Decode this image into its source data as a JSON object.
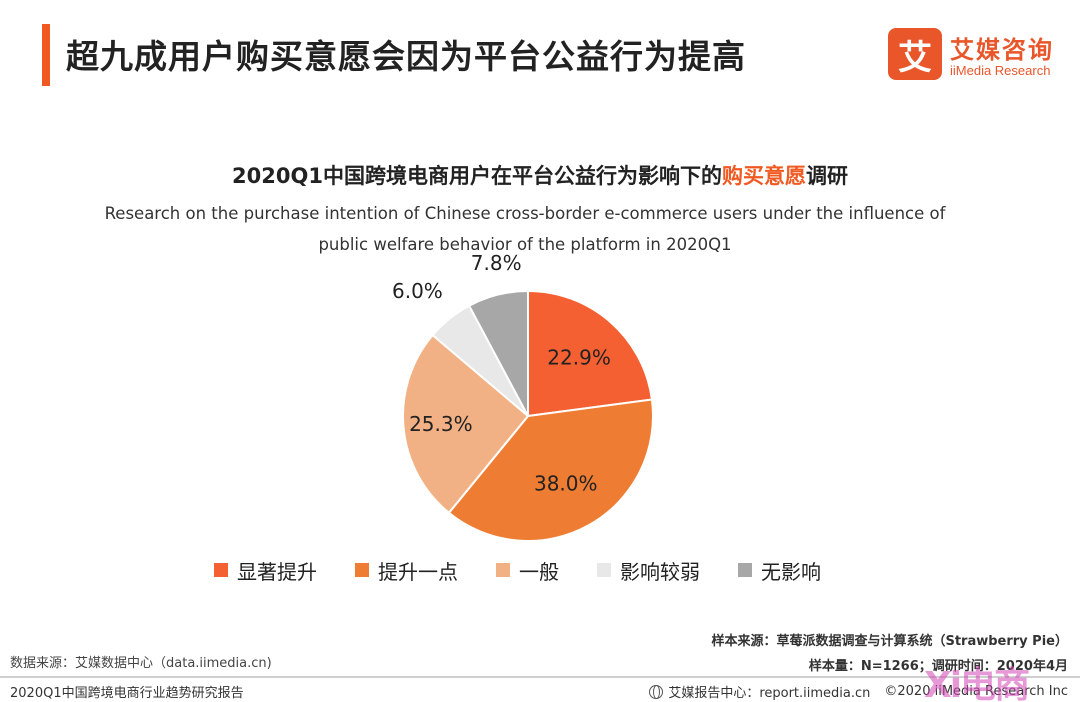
{
  "header": {
    "title": "超九成用户购买意愿会因为平台公益行为提高",
    "accent_color": "#f05a22"
  },
  "logo": {
    "mark": "艾",
    "name_cn": "艾媒咨询",
    "name_en": "iiMedia Research"
  },
  "chart_data": {
    "type": "pie",
    "title_parts": [
      "2020Q1中国跨境电商用户在平台公益行为影响下的",
      "购买意愿",
      "调研"
    ],
    "subtitle": "Research on the purchase intention of Chinese cross-border e-commerce users under the influence of public welfare behavior of the platform in 2020Q1",
    "categories": [
      "显著提升",
      "提升一点",
      "一般",
      "影响较弱",
      "无影响"
    ],
    "values": [
      22.9,
      38.0,
      25.3,
      6.0,
      7.8
    ],
    "labels": [
      "22.9%",
      "38.0%",
      "25.3%",
      "6.0%",
      "7.8%"
    ],
    "colors": [
      "#f46031",
      "#ee7d33",
      "#f2b184",
      "#e8e8e8",
      "#a7a7a7"
    ],
    "start": "12 o'clock",
    "direction": "clockwise",
    "legend_position": "bottom"
  },
  "footer": {
    "data_source": "数据来源：艾媒数据中心（data.iimedia.cn)",
    "sample_source": "样本来源：草莓派数据调查与计算系统（Strawberry Pie）",
    "sample_size": "样本量：N=1266；调研时间：2020年4月",
    "report_name": "2020Q1中国跨境电商行业趋势研究报告",
    "report_center": "艾媒报告中心：report.iimedia.cn",
    "copyright": "©2020  iiMedia Research  Inc",
    "watermark": "Xi电商"
  }
}
